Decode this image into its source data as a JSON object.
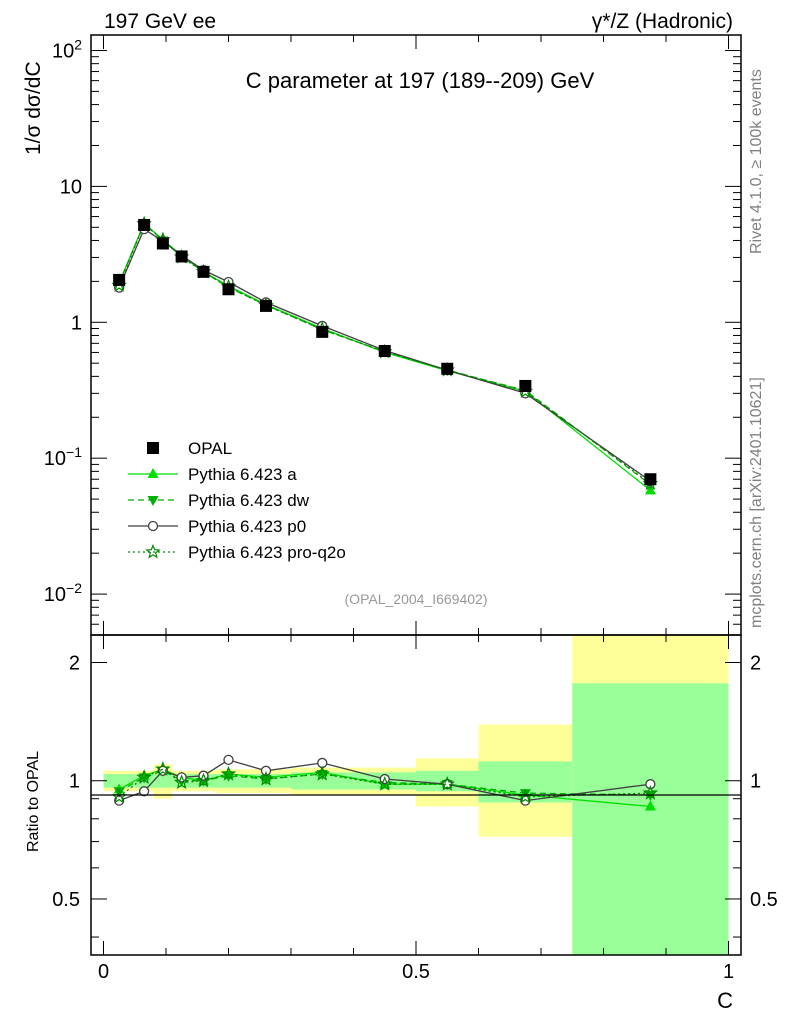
{
  "header": {
    "left": "197 GeV ee",
    "right": "γ*/Z (Hadronic)"
  },
  "side_labels": {
    "top": "Rivet 4.1.0, ≥ 100k events",
    "bottom": "mcplots.cern.ch [arXiv:2401.10621]"
  },
  "colors": {
    "data": "#000000",
    "a": "#00e000",
    "dw": "#00b000",
    "p0": "#404040",
    "proq2o": "#008800",
    "band_inner": "#99ff99",
    "band_outer": "#ffff99"
  },
  "chart_data": {
    "type": "line",
    "title": "C parameter at 197 (189--209) GeV",
    "xlabel": "C",
    "ylabel": "1/σ  dσ/dC",
    "ratio_ylabel": "Ratio to OPAL",
    "reference": "(OPAL_2004_I669402)",
    "xlim": [
      -0.02,
      1.02
    ],
    "ylim_main": [
      0.005,
      130
    ],
    "ylim_ratio": [
      0.36,
      2.35
    ],
    "log_y_main": true,
    "log_y_ratio": true,
    "x_ticks": [
      0,
      0.5,
      1
    ],
    "x_tick_labels": [
      "0",
      "0.5",
      "1"
    ],
    "y_ticks_main": [
      0.01,
      0.1,
      1,
      10,
      100
    ],
    "y_tick_labels_main": [
      "10^-2",
      "10^-1",
      "1",
      "10",
      "10^2"
    ],
    "y_ticks_ratio": [
      0.5,
      1,
      2
    ],
    "y_tick_labels_ratio": [
      "0.5",
      "1",
      "2"
    ],
    "bins": [
      [
        0.0,
        0.05
      ],
      [
        0.05,
        0.08
      ],
      [
        0.08,
        0.11
      ],
      [
        0.11,
        0.14
      ],
      [
        0.14,
        0.18
      ],
      [
        0.18,
        0.22
      ],
      [
        0.22,
        0.3
      ],
      [
        0.3,
        0.4
      ],
      [
        0.4,
        0.5
      ],
      [
        0.5,
        0.6
      ],
      [
        0.6,
        0.75
      ],
      [
        0.75,
        1.0
      ]
    ],
    "x": [
      0.025,
      0.065,
      0.095,
      0.125,
      0.16,
      0.2,
      0.26,
      0.35,
      0.45,
      0.55,
      0.675,
      0.875
    ],
    "series": [
      {
        "name": "OPAL",
        "key": "data",
        "marker": "square",
        "values": [
          2.05,
          5.2,
          3.8,
          3.05,
          2.35,
          1.75,
          1.32,
          0.85,
          0.615,
          0.455,
          0.34,
          0.07
        ]
      },
      {
        "name": "Pythia 6.423 a",
        "key": "a",
        "marker": "triangle-up",
        "dash": "",
        "values": [
          1.95,
          5.35,
          4.05,
          3.1,
          2.35,
          1.85,
          1.35,
          0.9,
          0.6,
          0.44,
          0.31,
          0.058
        ]
      },
      {
        "name": "Pythia 6.423 dw",
        "key": "dw",
        "marker": "triangle-down",
        "dash": "6,4",
        "values": [
          1.93,
          5.3,
          4.0,
          3.05,
          2.35,
          1.8,
          1.34,
          0.88,
          0.61,
          0.445,
          0.315,
          0.064
        ]
      },
      {
        "name": "Pythia 6.423 p0",
        "key": "p0",
        "marker": "circle-open",
        "dash": "",
        "values": [
          1.8,
          4.85,
          3.95,
          3.1,
          2.42,
          1.98,
          1.4,
          0.94,
          0.62,
          0.445,
          0.3,
          0.068
        ]
      },
      {
        "name": "Pythia 6.423 pro-q2o",
        "key": "proq2o",
        "marker": "star",
        "dash": "2,3",
        "values": [
          1.87,
          5.3,
          4.05,
          3.02,
          2.35,
          1.82,
          1.33,
          0.89,
          0.605,
          0.445,
          0.31,
          0.065
        ]
      }
    ],
    "ratio_series": [
      {
        "key": "a",
        "values": [
          0.95,
          1.03,
          1.07,
          1.02,
          1.0,
          1.04,
          1.02,
          1.05,
          0.98,
          0.98,
          0.92,
          0.86
        ]
      },
      {
        "key": "dw",
        "values": [
          0.94,
          1.02,
          1.06,
          1.0,
          1.0,
          1.03,
          1.01,
          1.04,
          0.99,
          0.98,
          0.93,
          0.92
        ]
      },
      {
        "key": "p0",
        "values": [
          0.89,
          0.94,
          1.06,
          1.02,
          1.03,
          1.13,
          1.06,
          1.11,
          1.01,
          0.98,
          0.89,
          0.98
        ]
      },
      {
        "key": "proq2o",
        "values": [
          0.91,
          1.02,
          1.07,
          0.99,
          1.0,
          1.04,
          1.01,
          1.04,
          0.98,
          0.98,
          0.91,
          0.93
        ]
      }
    ],
    "ratio_bands": {
      "inner_lo": [
        0.96,
        0.96,
        0.96,
        0.96,
        0.96,
        0.96,
        0.96,
        0.95,
        0.95,
        0.94,
        0.88,
        0.3
      ],
      "inner_hi": [
        1.04,
        1.04,
        1.04,
        1.04,
        1.04,
        1.04,
        1.04,
        1.05,
        1.05,
        1.06,
        1.12,
        1.77
      ],
      "outer_lo": [
        0.94,
        0.94,
        0.9,
        0.94,
        0.94,
        0.93,
        0.93,
        0.92,
        0.92,
        0.86,
        0.72,
        0.3
      ],
      "outer_hi": [
        1.06,
        1.06,
        1.1,
        1.06,
        1.06,
        1.07,
        1.07,
        1.08,
        1.08,
        1.14,
        1.39,
        2.35
      ]
    }
  }
}
